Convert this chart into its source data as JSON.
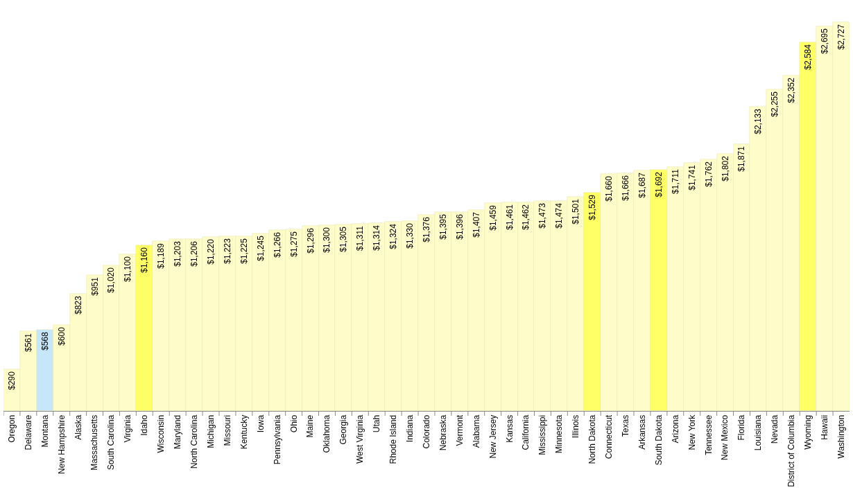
{
  "chart_data": {
    "type": "bar",
    "categories": [
      "Oregon",
      "Delaware",
      "Montana",
      "New Hampshire",
      "Alaska",
      "Massachusetts",
      "South Carolina",
      "Virginia",
      "Idaho",
      "Wisconsin",
      "Maryland",
      "North Carolina",
      "Michigan",
      "Missouri",
      "Kentucky",
      "Iowa",
      "Pennsylvania",
      "Ohio",
      "Maine",
      "Oklahoma",
      "Georgia",
      "West Virginia",
      "Utah",
      "Rhode Island",
      "Indiana",
      "Colorado",
      "Nebraska",
      "Vermont",
      "Alabama",
      "New Jersey",
      "Kansas",
      "California",
      "Mississippi",
      "Minnesota",
      "Illinois",
      "North Dakota",
      "Connecticut",
      "Texas",
      "Arkansas",
      "South Dakota",
      "Arizona",
      "New York",
      "Tennessee",
      "New Mexico",
      "Florida",
      "Louisiana",
      "Nevada",
      "District of Columbia",
      "Wyoming",
      "Hawaii",
      "Washington"
    ],
    "values": [
      290,
      561,
      568,
      600,
      823,
      951,
      1020,
      1100,
      1160,
      1189,
      1203,
      1206,
      1220,
      1223,
      1225,
      1245,
      1266,
      1275,
      1296,
      1300,
      1305,
      1311,
      1314,
      1324,
      1330,
      1376,
      1395,
      1396,
      1407,
      1459,
      1461,
      1462,
      1473,
      1474,
      1501,
      1529,
      1660,
      1666,
      1687,
      1692,
      1711,
      1741,
      1762,
      1802,
      1871,
      2133,
      2255,
      2352,
      2584,
      2695,
      2727
    ],
    "value_labels": [
      "$290",
      "$561",
      "$568",
      "$600",
      "$823",
      "$951",
      "$1,020",
      "$1,100",
      "$1,160",
      "$1,189",
      "$1,203",
      "$1,206",
      "$1,220",
      "$1,223",
      "$1,225",
      "$1,245",
      "$1,266",
      "$1,275",
      "$1,296",
      "$1,300",
      "$1,305",
      "$1,311",
      "$1,314",
      "$1,324",
      "$1,330",
      "$1,376",
      "$1,395",
      "$1,396",
      "$1,407",
      "$1,459",
      "$1,461",
      "$1,462",
      "$1,473",
      "$1,474",
      "$1,501",
      "$1,529",
      "$1,660",
      "$1,666",
      "$1,687",
      "$1,692",
      "$1,711",
      "$1,741",
      "$1,762",
      "$1,802",
      "$1,871",
      "$2,133",
      "$2,255",
      "$2,352",
      "$2,584",
      "$2,695",
      "$2,727"
    ],
    "colors": [
      "#fefcc8",
      "#fefcc8",
      "#c6e6fa",
      "#fefcc8",
      "#fefcc8",
      "#fefcc8",
      "#fefcc8",
      "#fefcc8",
      "#ffff66",
      "#fefcc8",
      "#fefcc8",
      "#fefcc8",
      "#fefcc8",
      "#fefcc8",
      "#fefcc8",
      "#fefcc8",
      "#fefcc8",
      "#fefcc8",
      "#fefcc8",
      "#fefcc8",
      "#fefcc8",
      "#fefcc8",
      "#fefcc8",
      "#fefcc8",
      "#fefcc8",
      "#fefcc8",
      "#fefcc8",
      "#fefcc8",
      "#fefcc8",
      "#fefcc8",
      "#fefcc8",
      "#fefcc8",
      "#fefcc8",
      "#fefcc8",
      "#fefcc8",
      "#ffff66",
      "#fefcc8",
      "#fefcc8",
      "#fefcc8",
      "#ffff66",
      "#fefcc8",
      "#fefcc8",
      "#fefcc8",
      "#fefcc8",
      "#fefcc8",
      "#fefcc8",
      "#fefcc8",
      "#fefcc8",
      "#ffff66",
      "#fefcc8",
      "#fefcc8"
    ]
  }
}
